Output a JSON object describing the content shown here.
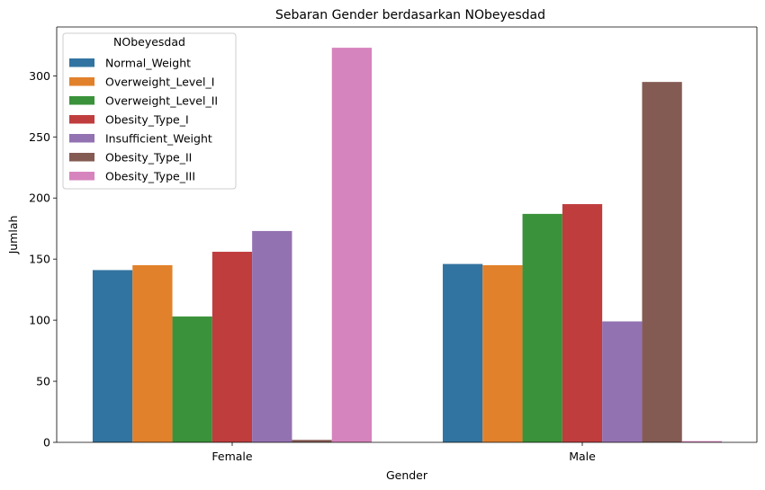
{
  "chart_data": {
    "type": "bar",
    "title": "Sebaran Gender berdasarkan NObeyesdad",
    "xlabel": "Gender",
    "ylabel": "Jumlah",
    "categories": [
      "Female",
      "Male"
    ],
    "ylim": [
      0,
      340
    ],
    "yticks": [
      0,
      50,
      100,
      150,
      200,
      250,
      300
    ],
    "grid": false,
    "legend": {
      "title": "NObeyesdad",
      "placement": "top-left"
    },
    "series": [
      {
        "name": "Normal_Weight",
        "color": "#3274a1",
        "values": [
          141,
          146
        ]
      },
      {
        "name": "Overweight_Level_I",
        "color": "#e1812c",
        "values": [
          145,
          145
        ]
      },
      {
        "name": "Overweight_Level_II",
        "color": "#3a923a",
        "values": [
          103,
          187
        ]
      },
      {
        "name": "Obesity_Type_I",
        "color": "#c03d3e",
        "values": [
          156,
          195
        ]
      },
      {
        "name": "Insufficient_Weight",
        "color": "#9372b2",
        "values": [
          173,
          99
        ]
      },
      {
        "name": "Obesity_Type_II",
        "color": "#845b53",
        "values": [
          2,
          295
        ]
      },
      {
        "name": "Obesity_Type_III",
        "color": "#d684bd",
        "values": [
          323,
          1
        ]
      }
    ]
  }
}
